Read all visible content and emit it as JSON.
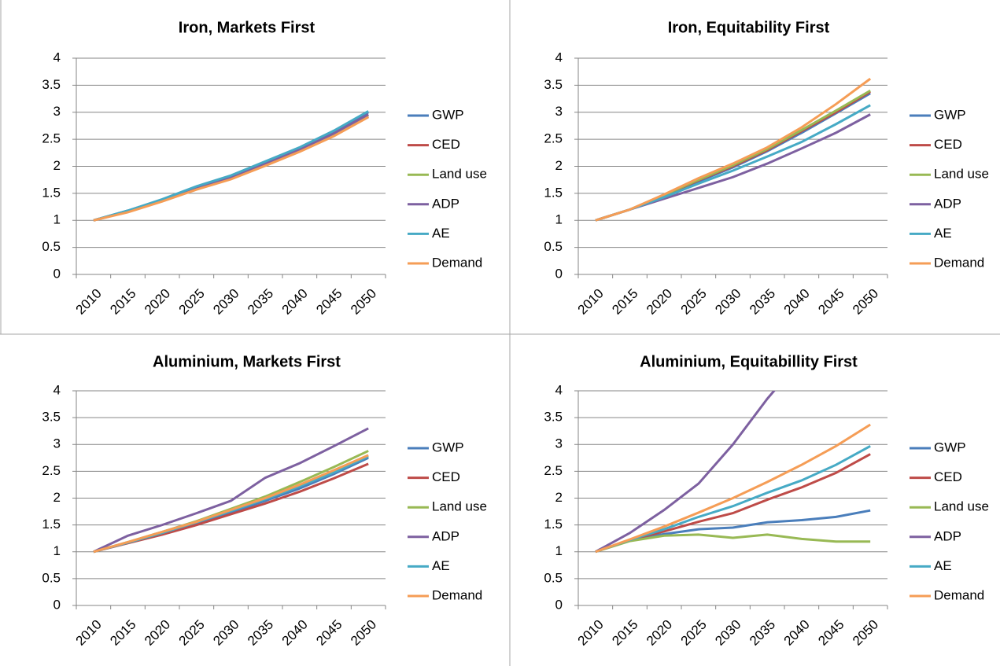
{
  "chart_data": [
    {
      "type": "line",
      "title": "Iron, Markets First",
      "categories": [
        "2010",
        "2015",
        "2020",
        "2025",
        "2030",
        "2035",
        "2040",
        "2045",
        "2050"
      ],
      "ylim": [
        0,
        4
      ],
      "yticks": [
        0,
        0.5,
        1,
        1.5,
        2,
        2.5,
        3,
        3.5,
        4
      ],
      "grid": true,
      "legend": "right",
      "series": [
        {
          "name": "GWP",
          "color": "#4a7ebb",
          "values": [
            1,
            1.18,
            1.38,
            1.62,
            1.82,
            2.08,
            2.34,
            2.65,
            3.0
          ]
        },
        {
          "name": "CED",
          "color": "#be4b48",
          "values": [
            1,
            1.16,
            1.36,
            1.58,
            1.77,
            2.02,
            2.28,
            2.57,
            2.92
          ]
        },
        {
          "name": "Land use",
          "color": "#98b954",
          "values": [
            1,
            1.17,
            1.37,
            1.6,
            1.79,
            2.04,
            2.3,
            2.6,
            2.95
          ]
        },
        {
          "name": "ADP",
          "color": "#7d60a0",
          "values": [
            1,
            1.17,
            1.37,
            1.6,
            1.8,
            2.05,
            2.31,
            2.61,
            2.96
          ]
        },
        {
          "name": "AE",
          "color": "#46aac5",
          "values": [
            1,
            1.18,
            1.39,
            1.63,
            1.83,
            2.09,
            2.35,
            2.66,
            3.02
          ]
        },
        {
          "name": "Demand",
          "color": "#f59d56",
          "values": [
            1,
            1.15,
            1.35,
            1.57,
            1.76,
            2.01,
            2.27,
            2.56,
            2.91
          ]
        }
      ]
    },
    {
      "type": "line",
      "title": "Iron, Equitability First",
      "categories": [
        "2010",
        "2015",
        "2020",
        "2025",
        "2030",
        "2035",
        "2040",
        "2045",
        "2050"
      ],
      "ylim": [
        0,
        4
      ],
      "yticks": [
        0,
        0.5,
        1,
        1.5,
        2,
        2.5,
        3,
        3.5,
        4
      ],
      "grid": true,
      "legend": "right",
      "series": [
        {
          "name": "GWP",
          "color": "#4a7ebb",
          "values": [
            1,
            1.2,
            1.45,
            1.72,
            1.98,
            2.28,
            2.62,
            2.98,
            3.35
          ]
        },
        {
          "name": "CED",
          "color": "#be4b48",
          "values": [
            1,
            1.2,
            1.46,
            1.74,
            2.0,
            2.3,
            2.65,
            3.0,
            3.38
          ]
        },
        {
          "name": "Land use",
          "color": "#98b954",
          "values": [
            1,
            1.2,
            1.47,
            1.75,
            2.02,
            2.32,
            2.67,
            3.03,
            3.4
          ]
        },
        {
          "name": "ADP",
          "color": "#7d60a0",
          "values": [
            1,
            1.2,
            1.4,
            1.6,
            1.8,
            2.05,
            2.33,
            2.62,
            2.96
          ]
        },
        {
          "name": "AE",
          "color": "#46aac5",
          "values": [
            1,
            1.2,
            1.43,
            1.68,
            1.92,
            2.18,
            2.45,
            2.78,
            3.13
          ]
        },
        {
          "name": "Demand",
          "color": "#f59d56",
          "values": [
            1,
            1.2,
            1.48,
            1.78,
            2.05,
            2.35,
            2.72,
            3.15,
            3.62
          ]
        }
      ]
    },
    {
      "type": "line",
      "title": "Aluminium, Markets First",
      "categories": [
        "2010",
        "2015",
        "2020",
        "2025",
        "2030",
        "2035",
        "2040",
        "2045",
        "2050"
      ],
      "ylim": [
        0,
        4
      ],
      "yticks": [
        0,
        0.5,
        1,
        1.5,
        2,
        2.5,
        3,
        3.5,
        4
      ],
      "grid": true,
      "legend": "right",
      "series": [
        {
          "name": "GWP",
          "color": "#4a7ebb",
          "values": [
            1,
            1.17,
            1.35,
            1.53,
            1.73,
            1.95,
            2.18,
            2.45,
            2.75
          ]
        },
        {
          "name": "CED",
          "color": "#be4b48",
          "values": [
            1,
            1.16,
            1.32,
            1.5,
            1.7,
            1.9,
            2.12,
            2.37,
            2.64
          ]
        },
        {
          "name": "Land use",
          "color": "#98b954",
          "values": [
            1,
            1.18,
            1.37,
            1.57,
            1.8,
            2.03,
            2.3,
            2.58,
            2.88
          ]
        },
        {
          "name": "ADP",
          "color": "#7d60a0",
          "values": [
            1,
            1.3,
            1.5,
            1.72,
            1.95,
            2.38,
            2.65,
            2.97,
            3.3
          ]
        },
        {
          "name": "AE",
          "color": "#46aac5",
          "values": [
            1,
            1.17,
            1.35,
            1.55,
            1.76,
            1.98,
            2.22,
            2.48,
            2.78
          ]
        },
        {
          "name": "Demand",
          "color": "#f59d56",
          "values": [
            1,
            1.18,
            1.37,
            1.56,
            1.78,
            2.0,
            2.25,
            2.52,
            2.8
          ]
        }
      ]
    },
    {
      "type": "line",
      "title": "Aluminium, Equitabillity First",
      "categories": [
        "2010",
        "2015",
        "2020",
        "2025",
        "2030",
        "2035",
        "2040",
        "2045",
        "2050"
      ],
      "ylim": [
        0,
        4
      ],
      "yticks": [
        0,
        0.5,
        1,
        1.5,
        2,
        2.5,
        3,
        3.5,
        4
      ],
      "grid": true,
      "legend": "right",
      "series": [
        {
          "name": "GWP",
          "color": "#4a7ebb",
          "values": [
            1,
            1.22,
            1.33,
            1.42,
            1.45,
            1.55,
            1.59,
            1.65,
            1.77
          ]
        },
        {
          "name": "CED",
          "color": "#be4b48",
          "values": [
            1,
            1.22,
            1.38,
            1.56,
            1.72,
            1.97,
            2.2,
            2.47,
            2.82
          ]
        },
        {
          "name": "Land use",
          "color": "#98b954",
          "values": [
            1,
            1.2,
            1.3,
            1.32,
            1.26,
            1.32,
            1.24,
            1.19,
            1.19
          ]
        },
        {
          "name": "ADP",
          "color": "#7d60a0",
          "values": [
            1,
            1.35,
            1.78,
            2.27,
            3.0,
            3.85,
            4.6,
            null,
            null
          ]
        },
        {
          "name": "AE",
          "color": "#46aac5",
          "values": [
            1,
            1.22,
            1.42,
            1.65,
            1.85,
            2.1,
            2.33,
            2.62,
            2.97
          ]
        },
        {
          "name": "Demand",
          "color": "#f59d56",
          "values": [
            1,
            1.23,
            1.47,
            1.73,
            2.0,
            2.3,
            2.62,
            2.97,
            3.37
          ]
        }
      ]
    }
  ]
}
